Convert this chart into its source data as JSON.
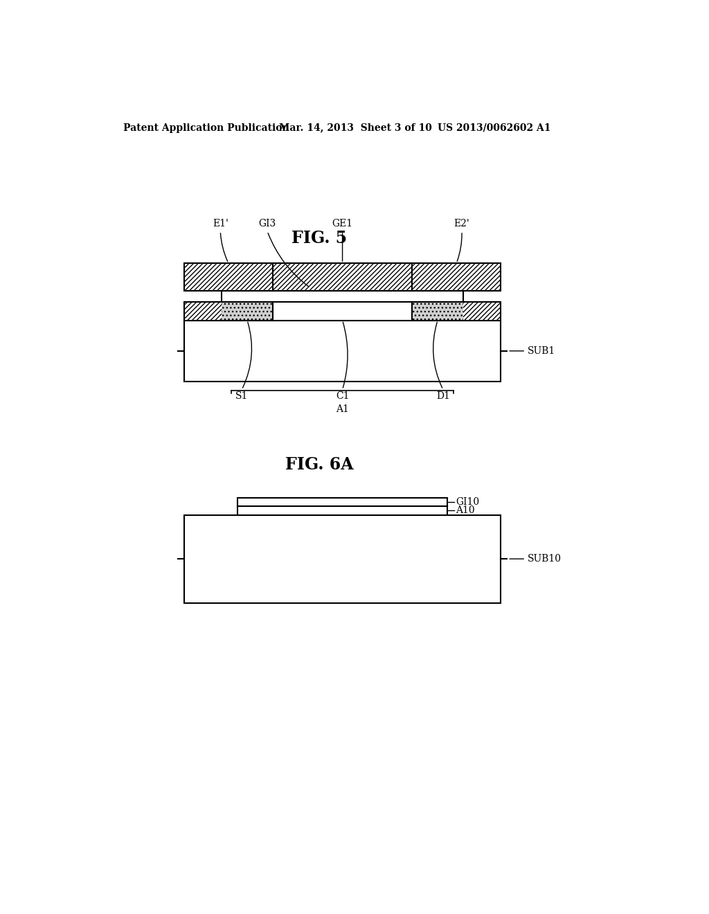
{
  "bg_color": "#ffffff",
  "header_left": "Patent Application Publication",
  "header_center": "Mar. 14, 2013  Sheet 3 of 10",
  "header_right": "US 2013/0062602 A1",
  "fig5_title": "FIG. 5",
  "fig6a_title": "FIG. 6A",
  "line_color": "#000000"
}
